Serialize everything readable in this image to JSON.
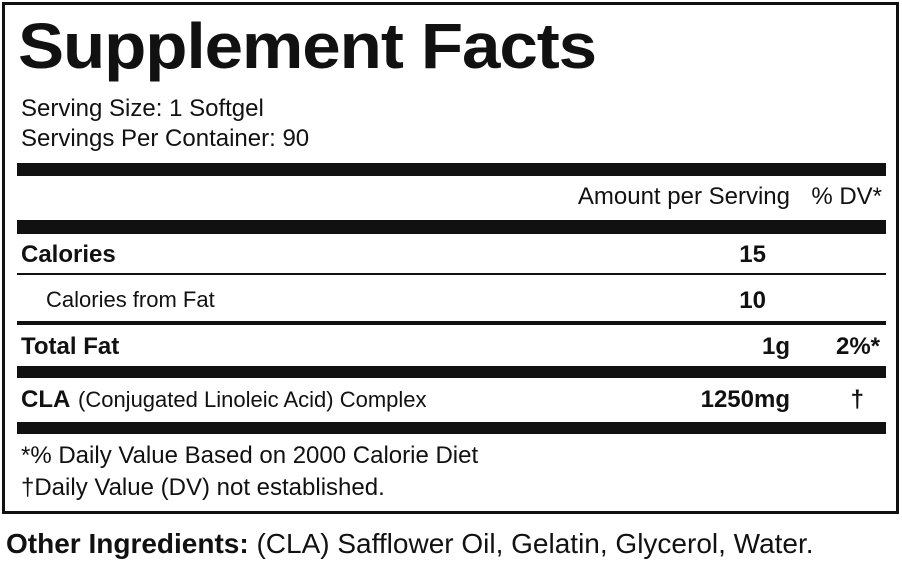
{
  "title": "Supplement Facts",
  "serving_size": "Serving Size: 1 Softgel",
  "servings_per_container": "Servings Per Container: 90",
  "header": {
    "amount": "Amount per Serving",
    "dv": "% DV*"
  },
  "rows": [
    {
      "name": "Calories",
      "amount": "15"
    },
    {
      "name": "Calories from Fat",
      "amount": "10"
    },
    {
      "name": "Total Fat",
      "amount": "1g",
      "dv": "2%*"
    },
    {
      "name": "CLA",
      "detail": "(Conjugated Linoleic Acid) Complex",
      "amount": "1250mg",
      "dv": "†"
    }
  ],
  "footnotes": [
    "*% Daily Value Based on 2000 Calorie Diet",
    "†Daily Value (DV) not established."
  ],
  "other_ingredients": {
    "label": "Other Ingredients:",
    "text": "(CLA) Safflower Oil, Gelatin, Glycerol, Water."
  }
}
